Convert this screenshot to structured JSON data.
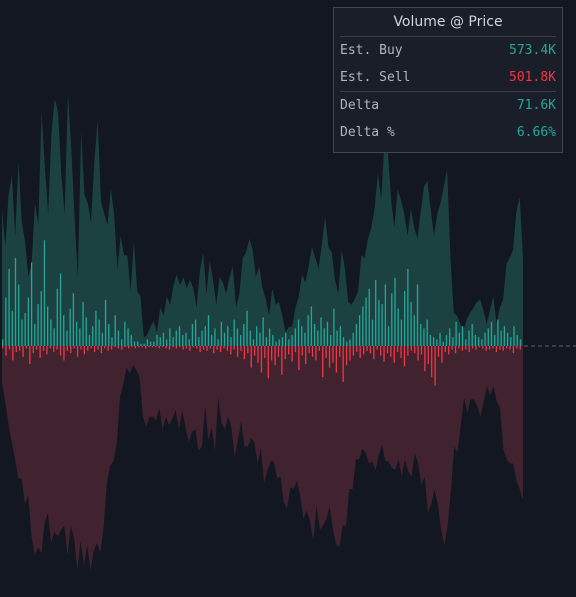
{
  "panel": {
    "title": "Volume @ Price",
    "rows": [
      {
        "label": "Est. Buy",
        "value": "573.4K"
      },
      {
        "label": "Est. Sell",
        "value": "501.8K"
      },
      {
        "label": "Delta",
        "value": "71.6K"
      },
      {
        "label": "Delta %",
        "value": "6.66%"
      }
    ]
  },
  "colors": {
    "background": "#131722",
    "buy": "#26a69a",
    "sell": "#f23645",
    "buy_fill": "#1d4a47",
    "sell_fill": "#4a2631"
  },
  "chart_data": {
    "type": "bar",
    "description_series": [
      "buy",
      "sell"
    ],
    "buy_envelope": [
      50,
      36,
      55,
      62,
      40,
      67,
      45,
      38,
      25,
      30,
      52,
      44,
      85,
      65,
      48,
      77,
      90,
      85,
      62,
      48,
      92,
      72,
      47,
      25,
      78,
      55,
      52,
      45,
      67,
      82,
      53,
      48,
      44,
      57,
      48,
      28,
      40,
      33,
      33,
      20,
      38,
      20,
      18,
      3,
      4,
      7,
      9,
      5,
      14,
      11,
      18,
      15,
      22,
      26,
      22,
      25,
      21,
      24,
      21,
      14,
      27,
      34,
      19,
      31,
      24,
      15,
      25,
      23,
      19,
      25,
      29,
      14,
      19,
      32,
      34,
      39,
      35,
      25,
      29,
      21,
      17,
      11,
      21,
      15,
      16,
      11,
      5,
      7,
      7,
      14,
      18,
      26,
      23,
      29,
      36,
      32,
      28,
      37,
      47,
      36,
      34,
      24,
      19,
      35,
      28,
      16,
      15,
      17,
      20,
      33,
      32,
      39,
      43,
      50,
      63,
      53,
      74,
      71,
      53,
      43,
      57,
      53,
      48,
      40,
      50,
      43,
      39,
      49,
      58,
      60,
      50,
      40,
      48,
      52,
      58,
      64,
      32,
      12,
      11,
      8,
      6,
      10,
      12,
      14,
      16,
      17,
      13,
      8,
      13,
      18,
      8,
      14,
      17,
      30,
      32,
      35,
      49,
      54,
      32
    ],
    "sell_envelope": [
      17,
      26,
      37,
      45,
      53,
      62,
      62,
      74,
      70,
      89,
      98,
      94,
      97,
      83,
      78,
      92,
      87,
      89,
      86,
      84,
      98,
      84,
      90,
      105,
      91,
      103,
      93,
      105,
      96,
      92,
      97,
      85,
      64,
      56,
      54,
      46,
      24,
      18,
      10,
      13,
      9,
      11,
      15,
      33,
      38,
      33,
      33,
      35,
      29,
      39,
      33,
      37,
      34,
      30,
      39,
      30,
      38,
      45,
      40,
      39,
      49,
      47,
      28,
      44,
      38,
      49,
      24,
      36,
      39,
      33,
      38,
      52,
      44,
      35,
      47,
      47,
      43,
      45,
      55,
      48,
      64,
      58,
      54,
      54,
      62,
      61,
      73,
      76,
      66,
      67,
      63,
      70,
      81,
      77,
      82,
      91,
      75,
      86,
      84,
      81,
      75,
      86,
      93,
      94,
      84,
      84,
      67,
      67,
      53,
      53,
      48,
      50,
      55,
      54,
      58,
      51,
      46,
      54,
      54,
      57,
      58,
      53,
      61,
      53,
      59,
      61,
      50,
      55,
      65,
      61,
      78,
      74,
      67,
      74,
      86,
      93,
      84,
      68,
      47,
      50,
      37,
      24,
      31,
      25,
      25,
      28,
      33,
      26,
      19,
      23,
      19,
      26,
      29,
      48,
      53,
      55,
      55,
      63,
      67,
      72
    ],
    "buy_bars": [
      3,
      22,
      35,
      16,
      40,
      28,
      12,
      15,
      22,
      38,
      10,
      19,
      25,
      48,
      18,
      12,
      8,
      26,
      33,
      14,
      7,
      17,
      24,
      11,
      8,
      20,
      13,
      5,
      9,
      16,
      12,
      6,
      21,
      10,
      4,
      14,
      7,
      3,
      11,
      8,
      5,
      2,
      2,
      1,
      1,
      3,
      2,
      2,
      5,
      4,
      6,
      3,
      8,
      4,
      7,
      9,
      5,
      6,
      3,
      10,
      12,
      4,
      7,
      9,
      14,
      5,
      8,
      3,
      11,
      6,
      9,
      4,
      12,
      8,
      5,
      10,
      16,
      7,
      3,
      9,
      6,
      13,
      4,
      8,
      5,
      2,
      3,
      4,
      6,
      3,
      5,
      8,
      12,
      9,
      6,
      14,
      18,
      10,
      7,
      13,
      8,
      11,
      5,
      17,
      7,
      9,
      4,
      2,
      3,
      6,
      10,
      14,
      18,
      22,
      26,
      12,
      30,
      21,
      19,
      28,
      9,
      24,
      31,
      17,
      12,
      25,
      35,
      20,
      14,
      28,
      10,
      8,
      12,
      5,
      4,
      3,
      6,
      2,
      5,
      8,
      4,
      11,
      6,
      9,
      3,
      7,
      10,
      5,
      4,
      3,
      6,
      8,
      11,
      5,
      12,
      7,
      9,
      6,
      4,
      9,
      5,
      3
    ],
    "sell_bars": [
      2,
      8,
      3,
      12,
      5,
      4,
      9,
      2,
      15,
      6,
      3,
      10,
      4,
      7,
      2,
      5,
      3,
      8,
      12,
      4,
      6,
      2,
      9,
      3,
      7,
      4,
      2,
      5,
      3,
      6,
      2,
      4,
      3,
      1,
      2,
      3,
      1,
      2,
      1,
      2,
      1,
      1,
      2,
      1,
      1,
      1,
      2,
      1,
      2,
      3,
      1,
      2,
      1,
      3,
      2,
      4,
      1,
      2,
      5,
      3,
      4,
      2,
      6,
      3,
      5,
      2,
      4,
      7,
      3,
      9,
      4,
      11,
      6,
      18,
      8,
      14,
      22,
      10,
      27,
      12,
      16,
      9,
      24,
      11,
      7,
      13,
      5,
      20,
      8,
      15,
      6,
      9,
      12,
      4,
      26,
      10,
      18,
      14,
      22,
      9,
      30,
      16,
      12,
      8,
      5,
      10,
      7,
      4,
      6,
      11,
      3,
      8,
      13,
      6,
      9,
      14,
      5,
      10,
      17,
      8,
      4,
      6,
      12,
      7,
      21,
      15,
      26,
      33,
      9,
      14,
      5,
      7,
      3,
      6,
      2,
      4,
      3,
      5,
      2,
      3,
      1,
      2,
      4,
      3,
      2,
      5,
      3,
      4,
      2,
      3,
      6,
      2,
      3
    ]
  }
}
